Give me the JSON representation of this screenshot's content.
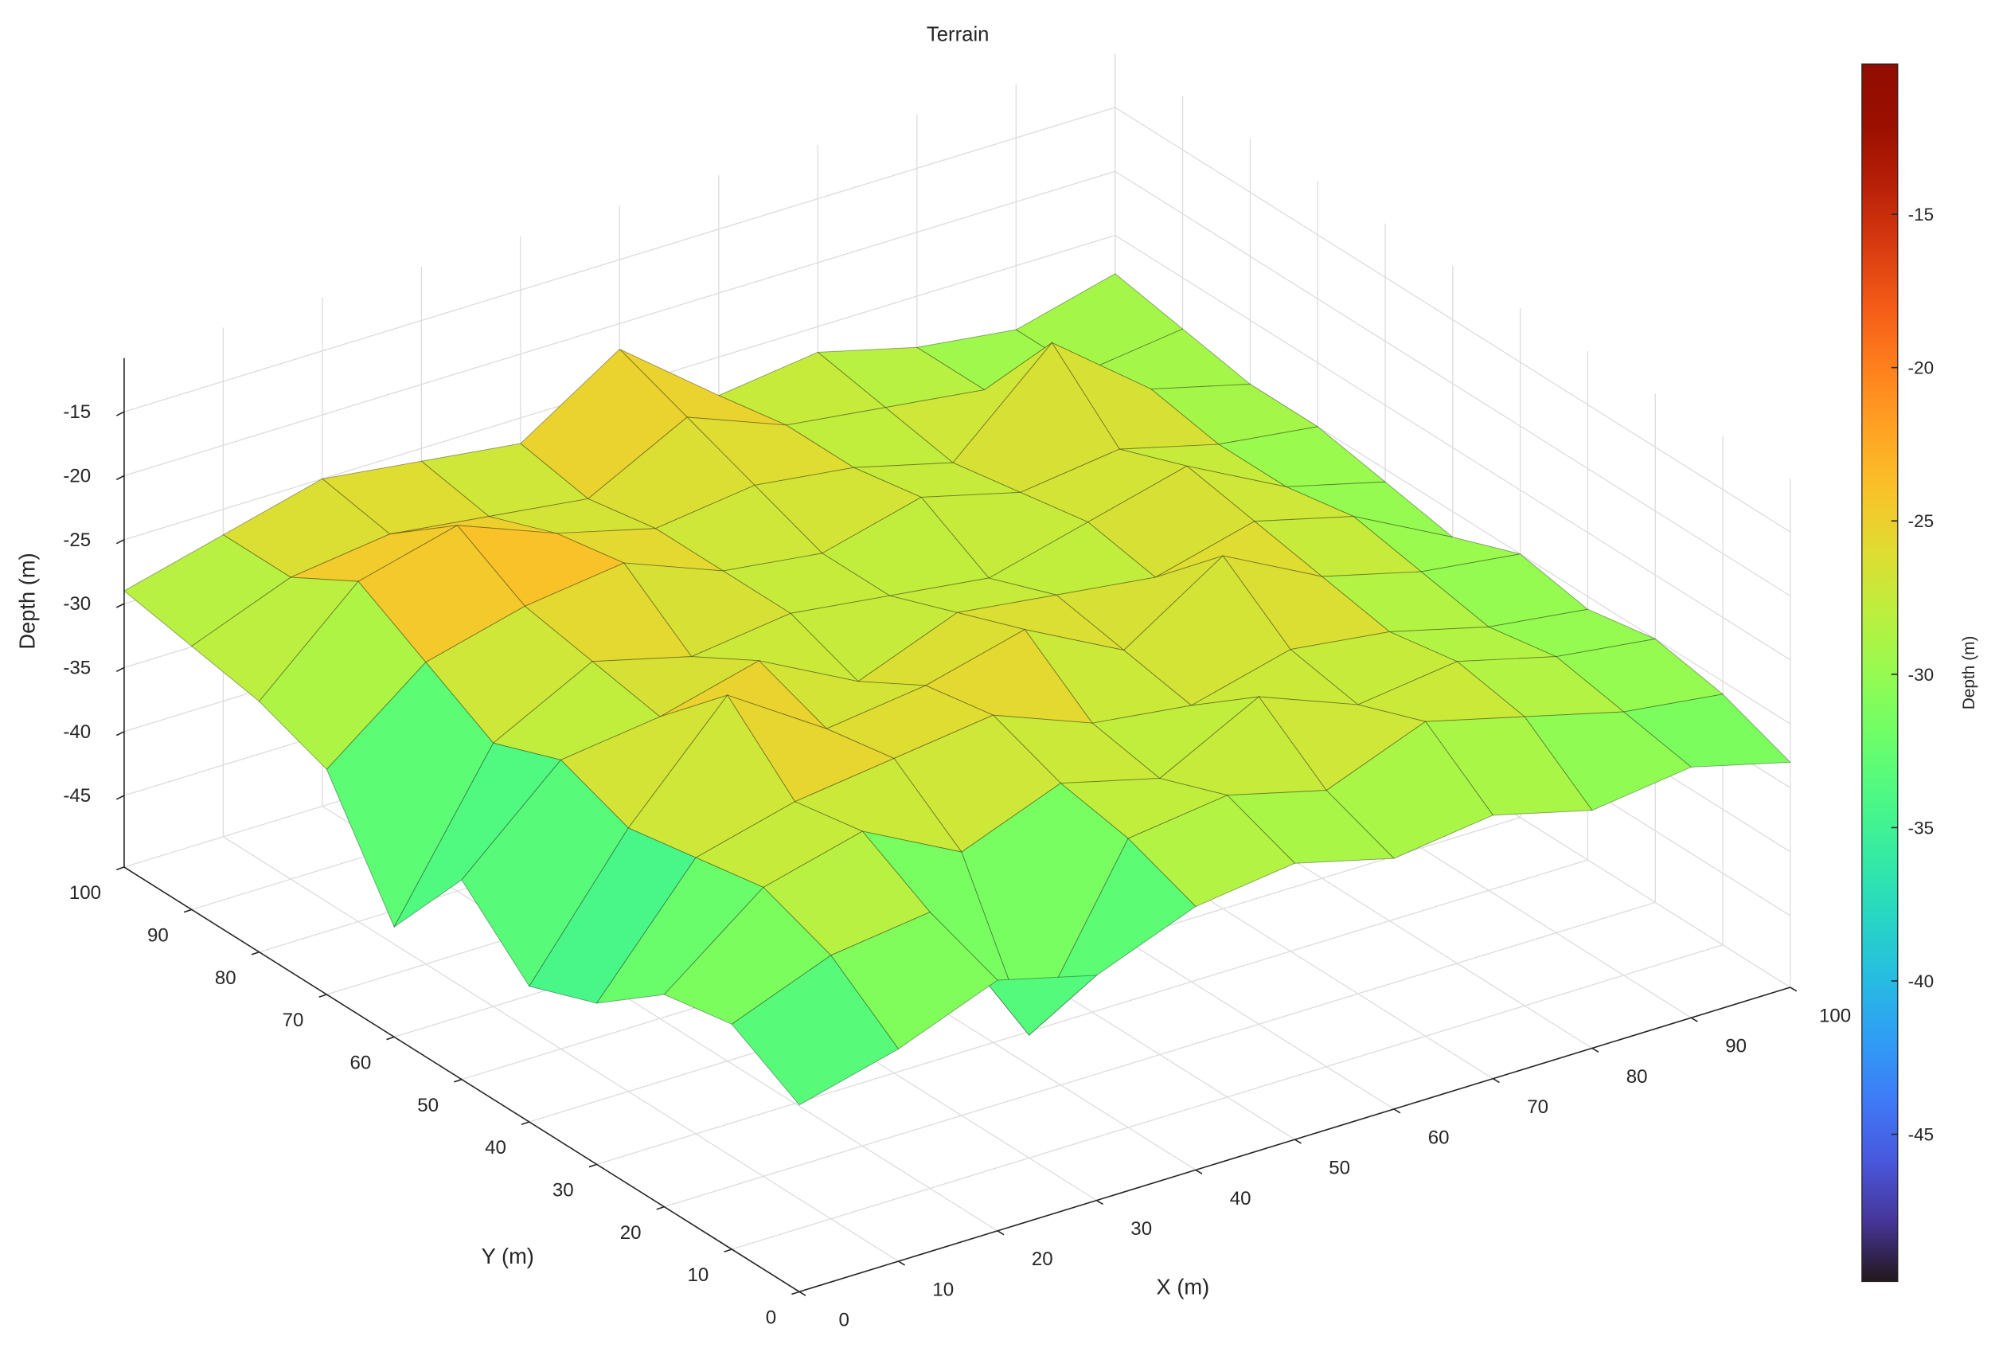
{
  "chart_data": {
    "type": "surface",
    "title": "Terrain",
    "x_label": "X (m)",
    "y_label": "Y (m)",
    "z_label": "Depth (m)",
    "colorbar_label": "Depth (m)",
    "x": [
      0,
      10,
      20,
      30,
      40,
      50,
      60,
      70,
      80,
      90,
      100
    ],
    "y": [
      0,
      10,
      20,
      30,
      40,
      50,
      60,
      70,
      80,
      90,
      100
    ],
    "z": [
      [
        -36,
        -34,
        -31,
        -33,
        -30,
        -29,
        -31,
        -30,
        -32,
        -31,
        -33
      ],
      [
        -33,
        -30,
        -29,
        -41,
        -28,
        -27,
        -29,
        -26,
        -28,
        -30,
        -31
      ],
      [
        -34,
        -28,
        -26,
        -30,
        -27,
        -29,
        -25,
        -28,
        -27,
        -29,
        -30
      ],
      [
        -38,
        -29,
        -27,
        -26,
        -25,
        -28,
        -29,
        -27,
        -28,
        -30,
        -31
      ],
      [
        -40,
        -30,
        -22,
        -27,
        -26,
        -24,
        -28,
        -23,
        -27,
        -29,
        -30
      ],
      [
        -35,
        -28,
        -27,
        -25,
        -29,
        -26,
        -27,
        -28,
        -26,
        -28,
        -32
      ],
      [
        -42,
        -30,
        -26,
        -28,
        -27,
        -28,
        -29,
        -27,
        -25,
        -29,
        -31
      ],
      [
        -33,
        -27,
        -25,
        -24,
        -27,
        -28,
        -26,
        -28,
        -27,
        -29,
        -30
      ],
      [
        -31,
        -24,
        -22,
        -25,
        -27,
        -26,
        -27,
        -29,
        -22,
        -28,
        -30
      ],
      [
        -30,
        -27,
        -26,
        -27,
        -28,
        -24,
        -27,
        -28,
        -29,
        -30,
        -29
      ],
      [
        -29,
        -27,
        -25,
        -26,
        -27,
        -22,
        -28,
        -27,
        -29,
        -30,
        -28
      ]
    ],
    "xlim": [
      0,
      100
    ],
    "ylim": [
      0,
      100
    ],
    "zlim": [
      -50.6,
      -10.8
    ],
    "xticks": [
      0,
      10,
      20,
      30,
      40,
      50,
      60,
      70,
      80,
      90,
      100
    ],
    "yticks": [
      0,
      10,
      20,
      30,
      40,
      50,
      60,
      70,
      80,
      90,
      100
    ],
    "zticks": [
      -45,
      -40,
      -35,
      -30,
      -25,
      -20,
      -15
    ],
    "clim": [
      -49.8,
      -10.1
    ],
    "cticks": [
      -45,
      -40,
      -35,
      -30,
      -25,
      -20,
      -15
    ],
    "colormap": "turbo",
    "grid": true
  }
}
